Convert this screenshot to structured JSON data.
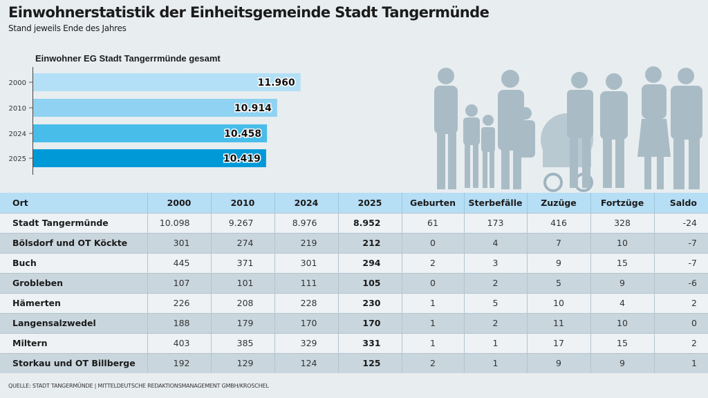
{
  "title": "Einwohnerstatistik der Einheitsgemeinde Stadt Tangermünde",
  "subtitle": "Stand jeweils Ende des Jahres",
  "chart_data": {
    "type": "bar",
    "orientation": "horizontal",
    "title": "Einwohner EG Stadt Tangerrmünde gesamt",
    "categories": [
      "2000",
      "2010",
      "2024",
      "2025"
    ],
    "values": [
      11960,
      10914,
      10458,
      10419
    ],
    "value_labels": [
      "11.960",
      "10.914",
      "10.458",
      "10.419"
    ],
    "colors": [
      "#b3e0f6",
      "#8fd2f2",
      "#49bdea",
      "#0099d8"
    ],
    "grid": false
  },
  "table": {
    "headers": [
      "Ort",
      "2000",
      "2010",
      "2024",
      "2025",
      "Geburten",
      "Sterbefälle",
      "Zuzüge",
      "Fortzüge",
      "Saldo"
    ],
    "rows": [
      [
        "Stadt Tangermünde",
        "10.098",
        "9.267",
        "8.976",
        "8.952",
        "61",
        "173",
        "416",
        "328",
        "-24"
      ],
      [
        "Bölsdorf und OT Köckte",
        "301",
        "274",
        "219",
        "212",
        "0",
        "4",
        "7",
        "10",
        "-7"
      ],
      [
        "Buch",
        "445",
        "371",
        "301",
        "294",
        "2",
        "3",
        "9",
        "15",
        "-7"
      ],
      [
        "Grobleben",
        "107",
        "101",
        "111",
        "105",
        "0",
        "2",
        "5",
        "9",
        "-6"
      ],
      [
        "Hämerten",
        "226",
        "208",
        "228",
        "230",
        "1",
        "5",
        "10",
        "4",
        "2"
      ],
      [
        "Langensalzwedel",
        "188",
        "179",
        "170",
        "170",
        "1",
        "2",
        "11",
        "10",
        "0"
      ],
      [
        "Miltern",
        "403",
        "385",
        "329",
        "331",
        "1",
        "1",
        "17",
        "15",
        "2"
      ],
      [
        "Storkau und OT Billberge",
        "192",
        "129",
        "124",
        "125",
        "2",
        "1",
        "9",
        "9",
        "1"
      ]
    ]
  },
  "source": "QUELLE: STADT TANGERMÜNDE | MITTELDEUTSCHE REDAKTIONSMANAGEMENT GMBH/KROSCHEL"
}
